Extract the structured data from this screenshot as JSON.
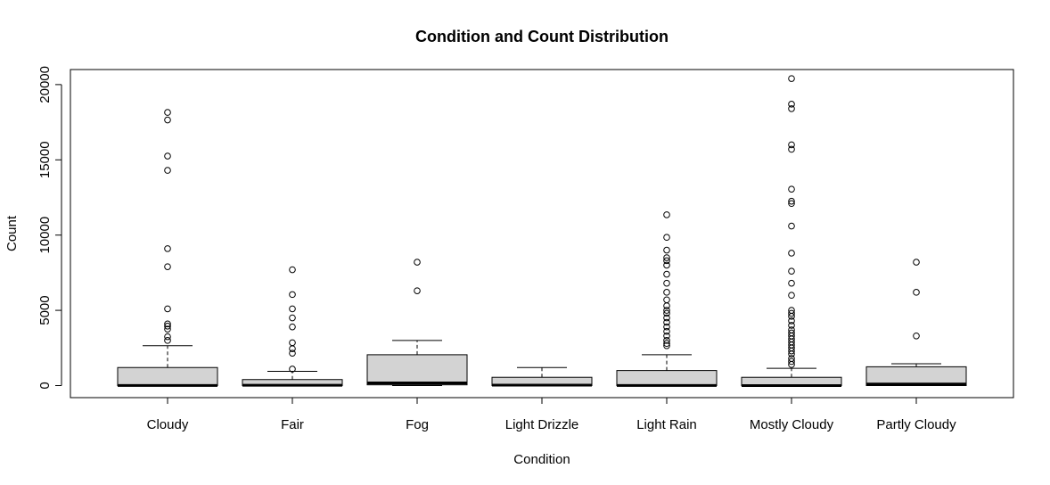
{
  "chart_data": {
    "type": "box",
    "title": "Condition and Count Distribution",
    "xlabel": "Condition",
    "ylabel": "Count",
    "ylim": [
      -800,
      21000
    ],
    "yticks": [
      0,
      5000,
      10000,
      15000,
      20000
    ],
    "box_fill": "#d3d3d3",
    "categories": [
      "Cloudy",
      "Fair",
      "Fog",
      "Light Drizzle",
      "Light Rain",
      "Mostly Cloudy",
      "Partly Cloudy"
    ],
    "series": [
      {
        "category": "Cloudy",
        "lower_whisker": 0,
        "q1": 0,
        "median": 10,
        "q3": 1200,
        "upper_whisker": 2650,
        "outliers": [
          18150,
          17650,
          15250,
          14300,
          9100,
          7900,
          5100,
          4100,
          3950,
          3750,
          3250,
          3000
        ]
      },
      {
        "category": "Fair",
        "lower_whisker": 0,
        "q1": 0,
        "median": 20,
        "q3": 400,
        "upper_whisker": 950,
        "outliers": [
          7700,
          6050,
          5100,
          4500,
          3900,
          2850,
          2450,
          2150,
          1100
        ]
      },
      {
        "category": "Fog",
        "lower_whisker": 0,
        "q1": 50,
        "median": 180,
        "q3": 2050,
        "upper_whisker": 3000,
        "outliers": [
          8200,
          6300
        ]
      },
      {
        "category": "Light Drizzle",
        "lower_whisker": 0,
        "q1": 0,
        "median": 30,
        "q3": 550,
        "upper_whisker": 1200,
        "outliers": []
      },
      {
        "category": "Light Rain",
        "lower_whisker": 0,
        "q1": 0,
        "median": 10,
        "q3": 1000,
        "upper_whisker": 2050,
        "outliers": [
          11350,
          9850,
          9000,
          8500,
          8300,
          8000,
          7400,
          6800,
          6200,
          5700,
          5300,
          5000,
          4800,
          4500,
          4200,
          3900,
          3600,
          3300,
          3000,
          2800,
          2650
        ]
      },
      {
        "category": "Mostly Cloudy",
        "lower_whisker": 0,
        "q1": 0,
        "median": 0,
        "q3": 550,
        "upper_whisker": 1150,
        "outliers": [
          20400,
          18700,
          18400,
          16000,
          15700,
          13050,
          12250,
          12100,
          10600,
          8800,
          7600,
          6800,
          6000,
          5000,
          4800,
          4600,
          4300,
          4000,
          3700,
          3500,
          3300,
          3100,
          2900,
          2700,
          2500,
          2300,
          2100,
          1800,
          1600,
          1400
        ]
      },
      {
        "category": "Partly Cloudy",
        "lower_whisker": 0,
        "q1": 0,
        "median": 100,
        "q3": 1250,
        "upper_whisker": 1450,
        "outliers": [
          8200,
          6200,
          3300
        ]
      }
    ],
    "grid": false,
    "legend": "none"
  }
}
